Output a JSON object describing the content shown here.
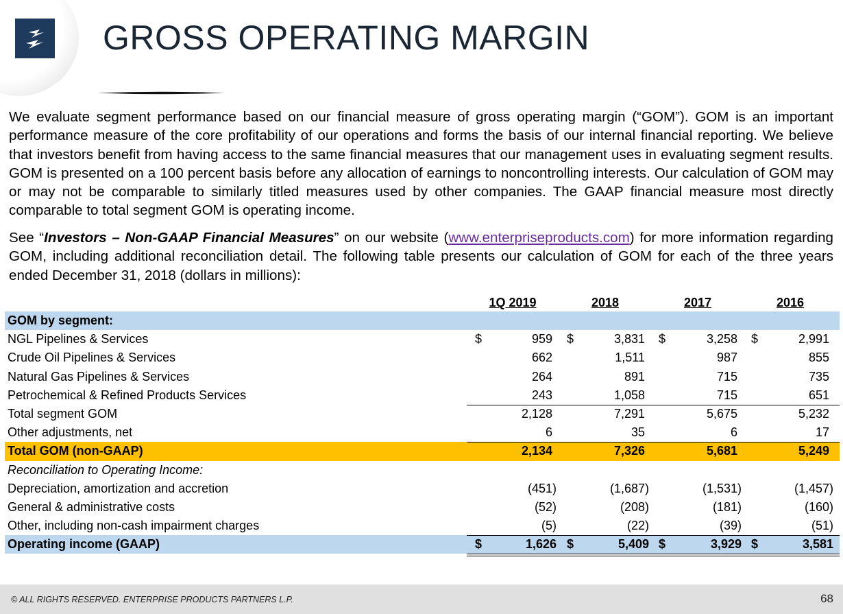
{
  "header": {
    "title": "GROSS OPERATING MARGIN",
    "logo_icon": "enterprise-products-logo",
    "brand_color": "#1e3a5c"
  },
  "intro": {
    "paragraph1": "We evaluate segment performance based on our financial measure of gross operating margin (“GOM”).  GOM is an important performance measure of the core profitability of our operations and forms the basis of our internal financial reporting.  We believe that investors benefit from having access to the same financial measures that our management uses in evaluating segment results.  GOM is presented on a 100 percent basis before any allocation of earnings to noncontrolling interests. Our calculation of GOM may or may not be comparable to similarly titled measures used by other companies. The GAAP financial measure most directly comparable to total segment GOM is operating income.",
    "p2_see": "See “",
    "p2_emphasis": "Investors – Non-GAAP Financial Measures",
    "p2_mid": "” on our website (",
    "p2_link": "www.enterpriseproducts.com",
    "p2_end": ") for more information regarding GOM, including additional reconciliation detail.  The following table presents our calculation of GOM for each of the three years ended December 31, 2018 (dollars in millions):"
  },
  "table": {
    "columns": [
      "1Q 2019",
      "2018",
      "2017",
      "2016"
    ],
    "section_header": "GOM by segment:",
    "segments": [
      {
        "label": "NGL Pipelines & Services",
        "dollar": "$",
        "values": [
          "959",
          "3,831",
          "3,258",
          "2,991"
        ]
      },
      {
        "label": "Crude Oil Pipelines & Services",
        "values": [
          "662",
          "1,511",
          "987",
          "855"
        ]
      },
      {
        "label": "Natural Gas Pipelines & Services",
        "values": [
          "264",
          "891",
          "715",
          "735"
        ]
      },
      {
        "label": "Petrochemical & Refined Products Services",
        "values": [
          "243",
          "1,058",
          "715",
          "651"
        ]
      }
    ],
    "total_segment": {
      "label": "Total segment GOM",
      "values": [
        "2,128",
        "7,291",
        "5,675",
        "5,232"
      ]
    },
    "other_adj": {
      "label": "Other adjustments, net",
      "values": [
        "6",
        "35",
        "6",
        "17"
      ]
    },
    "total_gom": {
      "label": "Total GOM (non-GAAP)",
      "values": [
        "2,134",
        "7,326",
        "5,681",
        "5,249"
      ]
    },
    "recon_header": "Reconciliation to Operating Income:",
    "recon": [
      {
        "label": "Depreciation, amortization and accretion",
        "values": [
          "(451)",
          "(1,687)",
          "(1,531)",
          "(1,457)"
        ]
      },
      {
        "label": "General & administrative costs",
        "values": [
          "(52)",
          "(208)",
          "(181)",
          "(160)"
        ]
      },
      {
        "label": "Other, including non-cash impairment charges",
        "values": [
          "(5)",
          "(22)",
          "(39)",
          "(51)"
        ]
      }
    ],
    "operating_income": {
      "label": "Operating income (GAAP)",
      "dollar": "$",
      "values": [
        "1,626",
        "5,409",
        "3,929",
        "3,581"
      ]
    },
    "colors": {
      "blue_band": "#bdd7ee",
      "gold_band": "#ffc000"
    }
  },
  "footer": {
    "copyright": "© ALL RIGHTS RESERVED. ENTERPRISE PRODUCTS PARTNERS L.P.",
    "page_number": "68"
  }
}
